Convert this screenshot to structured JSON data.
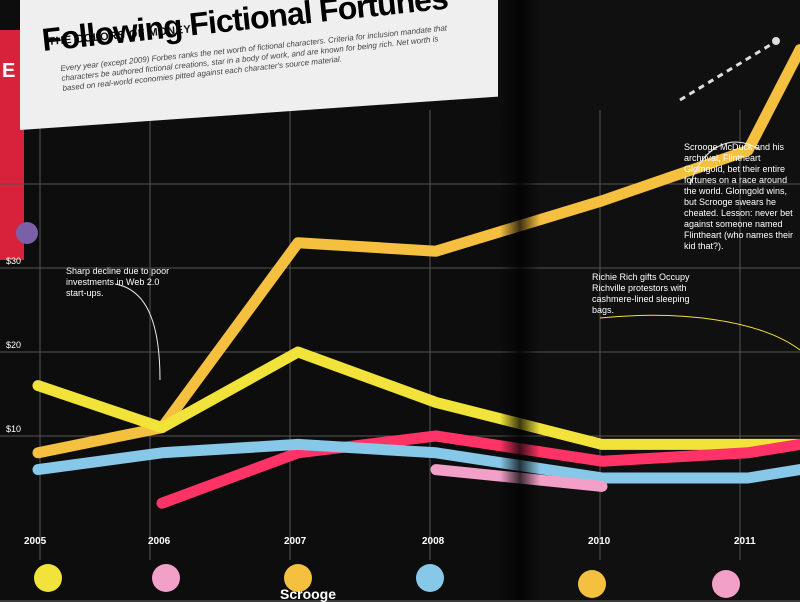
{
  "header": {
    "kicker": "THE COLORS OF MONEY",
    "title": "Following Fictional Fortunes",
    "deck": "Every year (except 2009) Forbes ranks the net worth of fictional characters. Criteria for inclusion mandate that characters be authored fictional creations, star in a body of work, and are known for being rich. Net worth is based on real-world economies pitted against each character's source material."
  },
  "annotations": {
    "web20": "Sharp decline due to poor investments in Web 2.0 start-ups.",
    "richie": "Richie Rich gifts Occupy Richville protestors with cashmere-lined sleeping bags.",
    "scrooge": "Scrooge McDuck and his archrival, Flintheart Glomgold, bet their entire fortunes on a race around the world. Glomgold wins, but Scrooge swears he cheated. Lesson: never bet against someone named Flintheart (who names their kid that?)."
  },
  "side_page": {
    "text": "E"
  },
  "legend": {
    "scrooge_label": "Scrooge"
  },
  "chart_data": {
    "type": "line",
    "title": "Following Fictional Fortunes",
    "x_ticks": [
      "2005",
      "2006",
      "2007",
      "2008",
      "2010",
      "2011"
    ],
    "y_ticks": [
      "$10",
      "$20",
      "$30"
    ],
    "ylim": [
      0,
      50
    ],
    "grid": true,
    "series": [
      {
        "color": "#f5c040",
        "x": [
          2005,
          2006,
          2007,
          2008,
          2010,
          2011,
          2012
        ],
        "y": [
          8,
          11,
          33,
          32,
          38,
          44,
          56
        ]
      },
      {
        "color": "#f2e33a",
        "x": [
          2005,
          2006,
          2007,
          2008,
          2010,
          2011,
          2012
        ],
        "y": [
          16,
          11,
          20,
          14,
          9,
          9,
          9
        ]
      },
      {
        "color": "#ff3366",
        "x": [
          2006,
          2007,
          2008,
          2010,
          2011,
          2012
        ],
        "y": [
          2,
          8,
          10,
          7,
          8,
          9
        ]
      },
      {
        "color": "#87c8e8",
        "x": [
          2005,
          2006,
          2007,
          2008,
          2010,
          2011,
          2012
        ],
        "y": [
          6,
          8,
          9,
          8,
          5,
          5,
          6
        ]
      },
      {
        "color": "#f2a0c8",
        "x": [
          2008,
          2010
        ],
        "y": [
          6,
          4
        ]
      }
    ],
    "legend_colors": [
      "#f2e33a",
      "#f2a0c8",
      "#f5c040",
      "#87c8e8",
      "#f5c040",
      "#f2a0c8"
    ]
  }
}
